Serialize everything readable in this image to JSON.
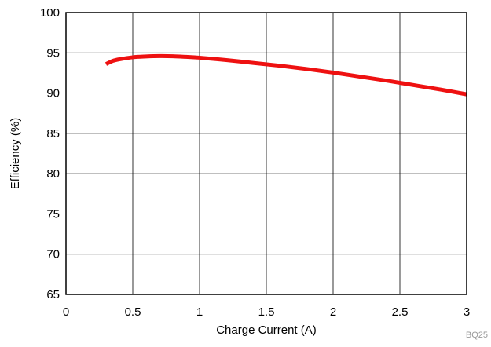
{
  "chart_data": {
    "type": "line",
    "xlabel": "Charge Current (A)",
    "ylabel": "Efficiency (%)",
    "xlim": [
      0,
      3
    ],
    "ylim": [
      65,
      100
    ],
    "x_ticks": [
      0,
      0.5,
      1,
      1.5,
      2,
      2.5,
      3
    ],
    "x_tick_labels": [
      "0",
      "0.5",
      "1",
      "1.5",
      "2",
      "2.5",
      "3"
    ],
    "y_ticks": [
      65,
      70,
      75,
      80,
      85,
      90,
      95,
      100
    ],
    "y_tick_labels": [
      "65",
      "70",
      "75",
      "80",
      "85",
      "90",
      "95",
      "100"
    ],
    "grid": true,
    "series": [
      {
        "color": "#ee1111",
        "x": [
          0.3,
          0.35,
          0.4,
          0.5,
          0.6,
          0.7,
          0.8,
          0.9,
          1.0,
          1.2,
          1.4,
          1.6,
          1.8,
          2.0,
          2.2,
          2.4,
          2.6,
          2.8,
          3.0
        ],
        "y": [
          93.6,
          94.0,
          94.2,
          94.45,
          94.55,
          94.6,
          94.58,
          94.5,
          94.4,
          94.1,
          93.75,
          93.4,
          93.0,
          92.55,
          92.05,
          91.55,
          91.0,
          90.45,
          89.85
        ]
      }
    ],
    "annotations": [
      "BQ25"
    ]
  }
}
